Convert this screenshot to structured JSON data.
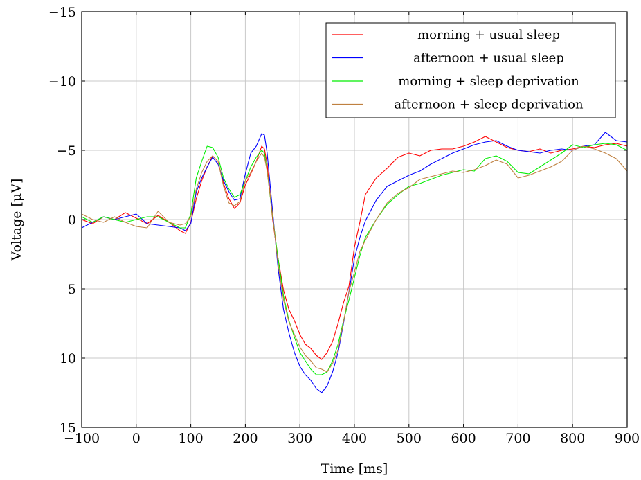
{
  "chart_data": {
    "type": "line",
    "title": "",
    "xlabel": "Time [ms]",
    "ylabel": "Voltage [μV]",
    "xlim": [
      -100,
      900
    ],
    "ylim": [
      -15,
      15
    ],
    "y_reversed": true,
    "xticks": [
      -100,
      0,
      100,
      200,
      300,
      400,
      500,
      600,
      700,
      800,
      900
    ],
    "yticks": [
      -15,
      -10,
      -5,
      0,
      5,
      10,
      15
    ],
    "xtick_labels": [
      "−100",
      "0",
      "100",
      "200",
      "300",
      "400",
      "500",
      "600",
      "700",
      "800",
      "900"
    ],
    "ytick_labels": [
      "−15",
      "−10",
      "−5",
      "0",
      "5",
      "10",
      "15"
    ],
    "grid": true,
    "legend_position": "top-right",
    "series": [
      {
        "name": "morning + usual sleep",
        "color": "#ff0000",
        "x": [
          -100,
          -80,
          -60,
          -40,
          -20,
          0,
          20,
          40,
          60,
          80,
          90,
          100,
          110,
          120,
          130,
          140,
          150,
          160,
          170,
          180,
          190,
          200,
          210,
          220,
          230,
          235,
          240,
          250,
          260,
          270,
          280,
          290,
          300,
          310,
          320,
          330,
          340,
          350,
          360,
          370,
          380,
          390,
          400,
          410,
          420,
          440,
          460,
          480,
          500,
          520,
          540,
          560,
          580,
          600,
          620,
          640,
          660,
          680,
          700,
          720,
          740,
          760,
          780,
          800,
          820,
          840,
          860,
          880,
          900
        ],
        "y": [
          0.0,
          0.3,
          -0.2,
          0.0,
          -0.5,
          -0.1,
          0.3,
          -0.3,
          0.2,
          0.8,
          1.0,
          0.2,
          -1.5,
          -2.8,
          -3.8,
          -4.6,
          -4.2,
          -2.6,
          -1.5,
          -0.8,
          -1.2,
          -2.5,
          -3.3,
          -4.2,
          -5.3,
          -5.1,
          -4.0,
          0.0,
          2.8,
          5.1,
          6.5,
          7.3,
          8.3,
          9.0,
          9.3,
          9.8,
          10.1,
          9.6,
          8.8,
          7.5,
          6.0,
          4.8,
          2.0,
          0.2,
          -1.8,
          -3.0,
          -3.7,
          -4.5,
          -4.8,
          -4.6,
          -5.0,
          -5.1,
          -5.1,
          -5.3,
          -5.6,
          -6.0,
          -5.6,
          -5.2,
          -5.0,
          -4.9,
          -5.1,
          -4.8,
          -5.0,
          -5.1,
          -5.3,
          -5.2,
          -5.4,
          -5.5,
          -5.3
        ]
      },
      {
        "name": "afternoon + usual sleep",
        "color": "#0000ff",
        "x": [
          -100,
          -80,
          -60,
          -40,
          -20,
          0,
          20,
          40,
          60,
          80,
          90,
          100,
          110,
          120,
          130,
          140,
          150,
          160,
          170,
          180,
          190,
          200,
          210,
          220,
          230,
          235,
          240,
          250,
          260,
          270,
          280,
          290,
          300,
          310,
          320,
          330,
          340,
          350,
          360,
          370,
          380,
          390,
          400,
          410,
          420,
          440,
          460,
          480,
          500,
          520,
          540,
          560,
          580,
          600,
          620,
          640,
          660,
          680,
          700,
          720,
          740,
          760,
          780,
          800,
          820,
          840,
          860,
          880,
          900
        ],
        "y": [
          0.6,
          0.2,
          -0.2,
          0.0,
          -0.2,
          -0.4,
          0.3,
          0.4,
          0.5,
          0.6,
          0.8,
          0.3,
          -2.0,
          -3.0,
          -3.8,
          -4.5,
          -4.0,
          -2.8,
          -2.0,
          -1.4,
          -1.5,
          -3.3,
          -4.8,
          -5.3,
          -6.2,
          -6.1,
          -4.8,
          -0.6,
          3.5,
          6.5,
          8.2,
          9.6,
          10.6,
          11.2,
          11.6,
          12.2,
          12.5,
          12.0,
          11.0,
          9.6,
          7.5,
          5.2,
          2.8,
          1.3,
          0.1,
          -1.4,
          -2.4,
          -2.8,
          -3.2,
          -3.5,
          -4.0,
          -4.4,
          -4.8,
          -5.1,
          -5.4,
          -5.6,
          -5.7,
          -5.3,
          -5.0,
          -4.9,
          -4.8,
          -5.0,
          -5.1,
          -5.0,
          -5.3,
          -5.4,
          -6.3,
          -5.7,
          -5.6
        ]
      },
      {
        "name": "morning + sleep deprivation",
        "color": "#00ee00",
        "x": [
          -100,
          -80,
          -60,
          -40,
          -20,
          0,
          20,
          40,
          60,
          80,
          90,
          100,
          110,
          120,
          130,
          140,
          150,
          160,
          170,
          180,
          190,
          200,
          210,
          220,
          230,
          235,
          240,
          250,
          260,
          270,
          280,
          290,
          300,
          310,
          320,
          330,
          340,
          350,
          360,
          370,
          380,
          390,
          400,
          410,
          420,
          440,
          460,
          480,
          500,
          520,
          540,
          560,
          580,
          600,
          620,
          640,
          660,
          680,
          700,
          720,
          740,
          760,
          780,
          800,
          820,
          840,
          860,
          880,
          900
        ],
        "y": [
          -0.2,
          0.2,
          -0.2,
          0.0,
          0.2,
          0.0,
          -0.2,
          -0.2,
          0.2,
          0.6,
          0.6,
          -0.4,
          -3.0,
          -4.2,
          -5.3,
          -5.2,
          -4.5,
          -3.0,
          -2.2,
          -1.6,
          -1.8,
          -2.8,
          -3.8,
          -4.5,
          -5.0,
          -4.8,
          -3.5,
          -0.2,
          2.8,
          5.5,
          7.3,
          8.5,
          9.6,
          10.2,
          10.8,
          11.2,
          11.2,
          11.0,
          10.2,
          9.0,
          7.3,
          5.8,
          4.2,
          2.6,
          1.3,
          0.0,
          -1.1,
          -1.8,
          -2.4,
          -2.6,
          -2.9,
          -3.2,
          -3.4,
          -3.6,
          -3.5,
          -4.4,
          -4.6,
          -4.2,
          -3.4,
          -3.3,
          -3.8,
          -4.3,
          -4.8,
          -5.4,
          -5.2,
          -5.4,
          -5.5,
          -5.4,
          -5.0
        ]
      },
      {
        "name": "afternoon + sleep deprivation",
        "color": "#bf8040",
        "x": [
          -100,
          -80,
          -60,
          -40,
          -20,
          0,
          20,
          40,
          60,
          80,
          90,
          100,
          110,
          120,
          130,
          140,
          150,
          160,
          170,
          180,
          190,
          200,
          210,
          220,
          230,
          235,
          240,
          250,
          260,
          270,
          280,
          290,
          300,
          310,
          320,
          330,
          340,
          350,
          360,
          370,
          380,
          390,
          400,
          410,
          420,
          440,
          460,
          480,
          500,
          520,
          540,
          560,
          580,
          600,
          620,
          640,
          660,
          680,
          700,
          720,
          740,
          760,
          780,
          800,
          820,
          840,
          860,
          880,
          900
        ],
        "y": [
          -0.4,
          0.0,
          0.2,
          -0.2,
          0.2,
          0.5,
          0.6,
          -0.6,
          0.2,
          0.4,
          0.3,
          -0.2,
          -2.2,
          -3.4,
          -4.2,
          -4.6,
          -4.2,
          -2.4,
          -1.2,
          -1.0,
          -1.3,
          -2.8,
          -3.4,
          -4.2,
          -4.8,
          -4.5,
          -3.5,
          -0.3,
          3.2,
          5.8,
          7.4,
          8.3,
          9.2,
          9.8,
          10.2,
          10.7,
          10.8,
          11.0,
          10.4,
          9.4,
          7.4,
          5.2,
          3.8,
          2.3,
          1.5,
          0.0,
          -1.2,
          -1.9,
          -2.3,
          -2.9,
          -3.1,
          -3.3,
          -3.5,
          -3.4,
          -3.6,
          -3.9,
          -4.3,
          -4.0,
          -3.0,
          -3.2,
          -3.5,
          -3.8,
          -4.2,
          -5.0,
          -5.3,
          -5.1,
          -4.8,
          -4.4,
          -3.5
        ]
      }
    ]
  }
}
